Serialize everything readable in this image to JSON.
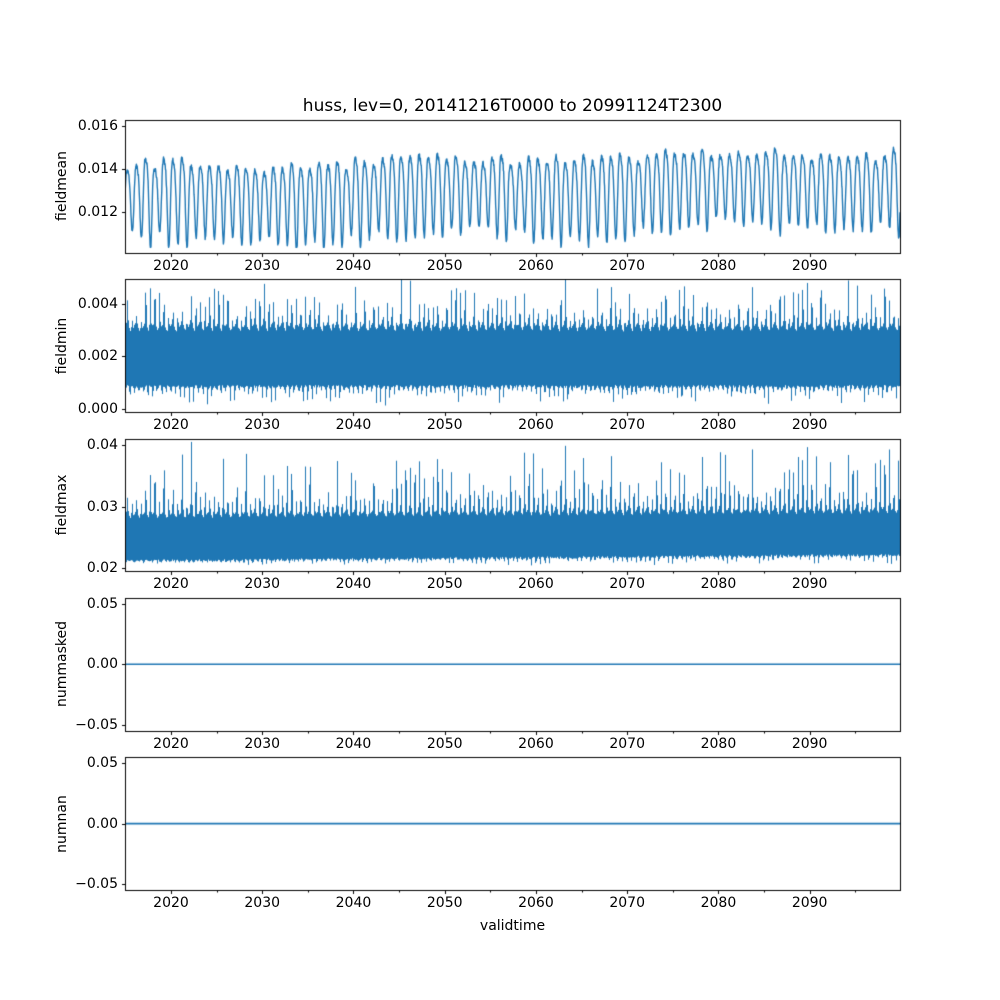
{
  "figure": {
    "title": "huss, lev=0, 20141216T0000 to 20991124T2300",
    "variable": "huss",
    "level": "lev=0",
    "time_start": "20141216T0000",
    "time_end": "20991124T2300",
    "xlabel": "validtime",
    "background": "#ffffff",
    "line_color": "#1f77b4",
    "axis_color": "#000000"
  },
  "x_axis": {
    "label": "validtime",
    "start": 2014.96,
    "end": 2099.9,
    "major_ticks": [
      2020,
      2030,
      2040,
      2050,
      2060,
      2070,
      2080,
      2090
    ],
    "major_tick_labels": [
      "2020",
      "2030",
      "2040",
      "2050",
      "2060",
      "2070",
      "2080",
      "2090"
    ],
    "minor_ticks": [
      2015,
      2025,
      2035,
      2045,
      2055,
      2065,
      2075,
      2085,
      2095
    ]
  },
  "chart_data": [
    {
      "type": "line",
      "name": "fieldmean",
      "ylabel": "fieldmean",
      "ylim": [
        0.0101,
        0.0163
      ],
      "yticks": [
        {
          "value": 0.012,
          "label": "0.012"
        },
        {
          "value": 0.014,
          "label": "0.014"
        },
        {
          "value": 0.016,
          "label": "0.016"
        }
      ],
      "grid": false,
      "signal": {
        "kind": "seasonal_line",
        "cycle": "annual",
        "base_start": 0.01262,
        "base_end": 0.01342,
        "seasonal_amp": 0.00175,
        "amp_jitter": 0.4,
        "noise": 0.00012,
        "observed_min": 0.0104,
        "observed_max": 0.016,
        "seed": 11
      }
    },
    {
      "type": "line",
      "name": "fieldmin",
      "ylabel": "fieldmin",
      "ylim": [
        -0.00013,
        0.00493
      ],
      "yticks": [
        {
          "value": 0.0,
          "label": "0.000"
        },
        {
          "value": 0.002,
          "label": "0.002"
        },
        {
          "value": 0.004,
          "label": "0.004"
        }
      ],
      "grid": false,
      "signal": {
        "kind": "noisy_band",
        "core_low": 0.00085,
        "core_high": 0.0031,
        "tooth_high_max": 0.00475,
        "tooth_low_min": 0.00012,
        "teeth_per_year": 2,
        "trend_gain": 0.25,
        "seed": 22
      }
    },
    {
      "type": "line",
      "name": "fieldmax",
      "ylabel": "fieldmax",
      "ylim": [
        0.0195,
        0.0411
      ],
      "yticks": [
        {
          "value": 0.02,
          "label": "0.02"
        },
        {
          "value": 0.03,
          "label": "0.03"
        },
        {
          "value": 0.04,
          "label": "0.04"
        }
      ],
      "grid": false,
      "signal": {
        "kind": "noisy_band",
        "core_low": 0.0212,
        "core_high": 0.0286,
        "core_low_end": 0.0222,
        "core_high_end": 0.0294,
        "tooth_high_max": 0.0401,
        "tooth_low_min": 0.0205,
        "teeth_per_year": 2,
        "spike_chance": 0.03,
        "trend_gain": 0.1,
        "seed": 33
      }
    },
    {
      "type": "line",
      "name": "nummasked",
      "ylabel": "nummasked",
      "ylim": [
        -0.055,
        0.055
      ],
      "yticks": [
        {
          "value": -0.05,
          "label": "−0.05"
        },
        {
          "value": 0.0,
          "label": "0.00"
        },
        {
          "value": 0.05,
          "label": "0.05"
        }
      ],
      "grid": false,
      "signal": {
        "kind": "constant",
        "value": 0.0
      }
    },
    {
      "type": "line",
      "name": "numnan",
      "ylabel": "numnan",
      "ylim": [
        -0.055,
        0.055
      ],
      "yticks": [
        {
          "value": -0.05,
          "label": "−0.05"
        },
        {
          "value": 0.0,
          "label": "0.00"
        },
        {
          "value": 0.05,
          "label": "0.05"
        }
      ],
      "grid": false,
      "signal": {
        "kind": "constant",
        "value": 0.0
      }
    }
  ]
}
